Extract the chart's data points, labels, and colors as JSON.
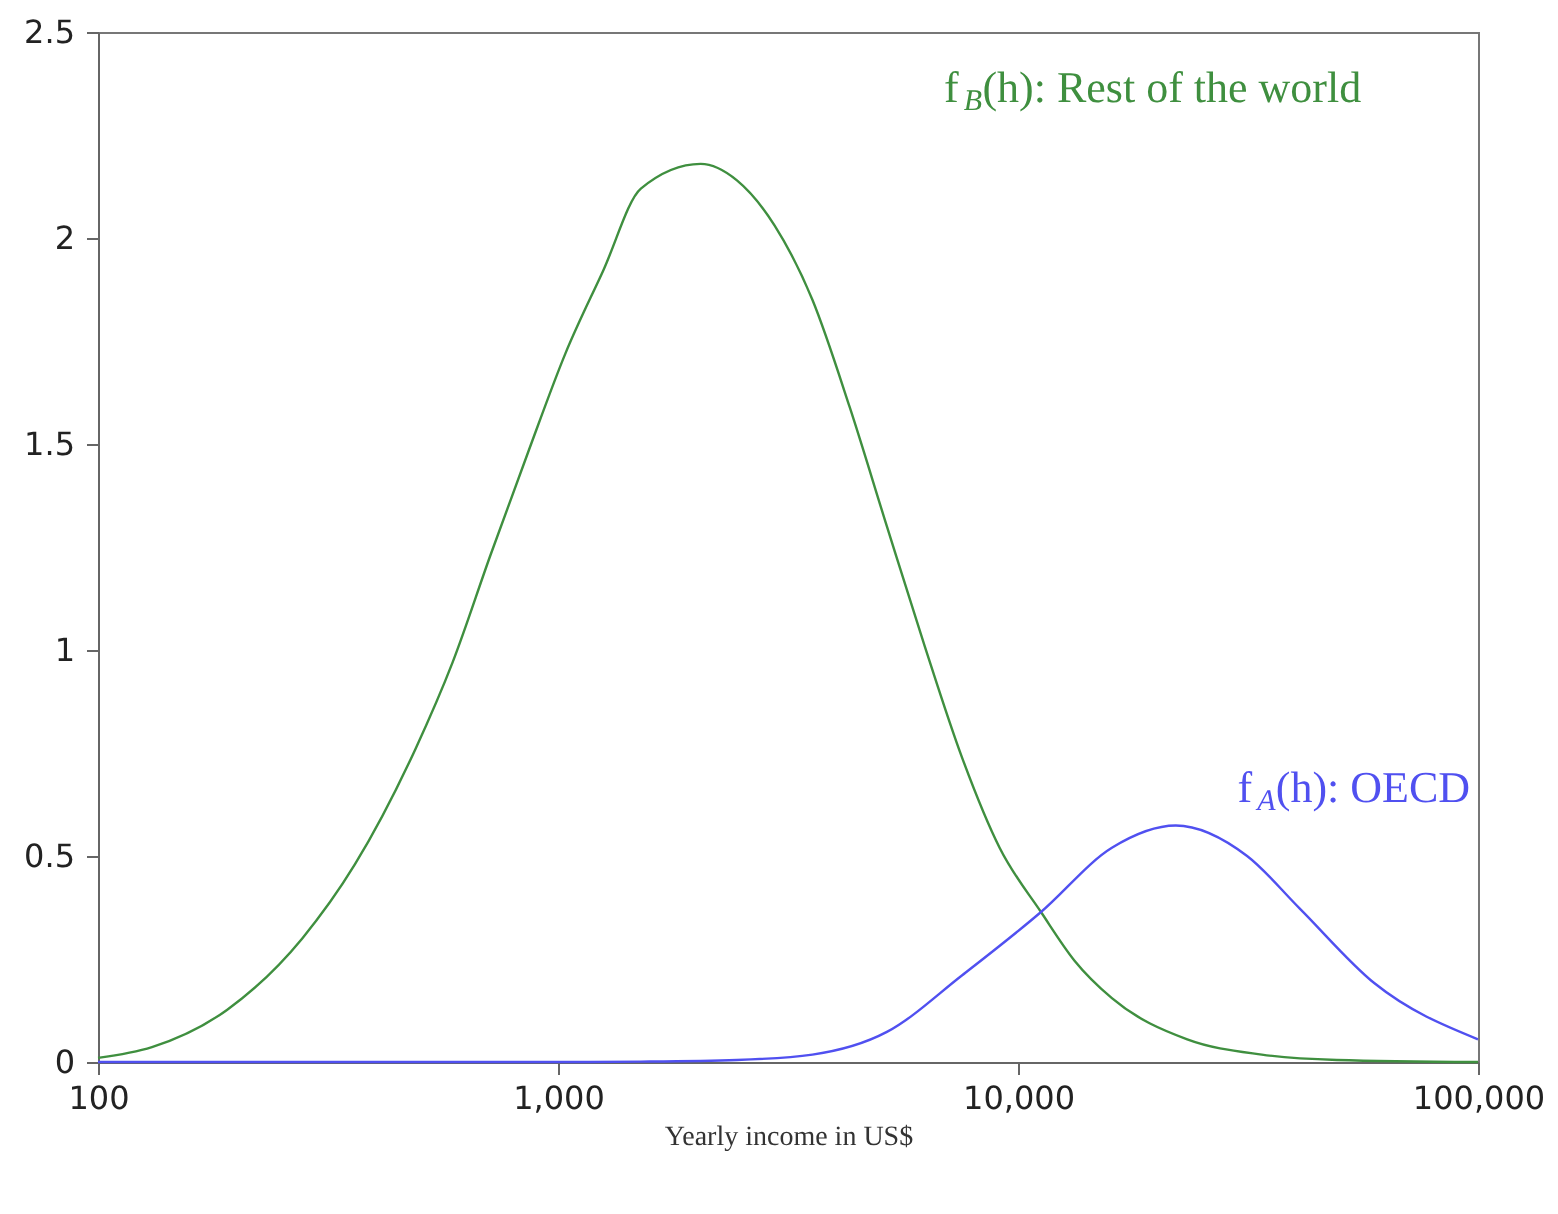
{
  "chart_data": {
    "type": "line",
    "xlabel": "Yearly income in US$",
    "log": "x",
    "grid": false,
    "marker": "none",
    "line_style": "solid",
    "xlim": [
      100,
      100000
    ],
    "xticks": [
      {
        "value": 100,
        "label": "100"
      },
      {
        "value": 1000,
        "label": "1,000"
      },
      {
        "value": 10000,
        "label": "10,000"
      },
      {
        "value": 100000,
        "label": "100,000"
      }
    ],
    "ylim": [
      0,
      2.5
    ],
    "yticks": [
      0,
      0.5,
      1,
      1.5,
      2,
      2.5
    ],
    "series": [
      {
        "name": "f$_{B}$(h): Rest of the world",
        "color": "#3f8f3f",
        "x": [
          100,
          131,
          191,
          278,
          362,
          490,
          590,
          713,
          861,
          1038,
          1253,
          1514,
          2042,
          2449,
          2958,
          3573,
          4305,
          5188,
          6266,
          7551,
          9120,
          11220,
          13270,
          16000,
          23330,
          33880,
          49320,
          100000
        ],
        "values": [
          0.01,
          0.036,
          0.127,
          0.3,
          0.48,
          0.76,
          0.97,
          1.23,
          1.48,
          1.72,
          1.92,
          2.12,
          2.18,
          2.14,
          2.03,
          1.85,
          1.59,
          1.3,
          1.01,
          0.74,
          0.52,
          0.364,
          0.246,
          0.155,
          0.055,
          0.018,
          0.005,
          0
        ]
      },
      {
        "name": "f$_{A}$(h): OECD",
        "color": "#5050f0",
        "x": [
          100,
          1000,
          1514,
          2449,
          3573,
          5188,
          7551,
          11220,
          16000,
          22030,
          31480,
          40930,
          59570,
          100000
        ],
        "values": [
          0,
          0,
          0.001,
          0.005,
          0.018,
          0.073,
          0.21,
          0.364,
          0.52,
          0.574,
          0.5,
          0.373,
          0.191,
          0.055
        ]
      }
    ]
  }
}
